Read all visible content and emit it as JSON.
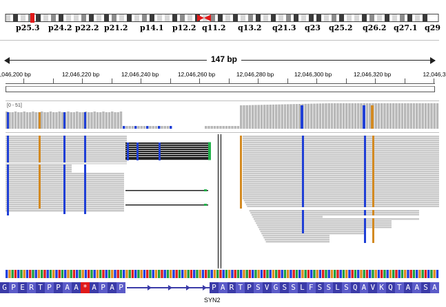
{
  "ideogram": {
    "band_labels": [
      "p25.3",
      "p24.2",
      "p22.2",
      "p21.2",
      "p14.1",
      "p12.2",
      "q11.2",
      "q13.2",
      "q21.3",
      "q23",
      "q25.2",
      "q26.2",
      "q27.1",
      "q29"
    ],
    "colors": {
      "dark": "#3a3a3a",
      "gray": "#8c8c8c",
      "light": "#d8d8d8",
      "centromere": "#e01a1a",
      "locator": "#e01a1a"
    }
  },
  "ruler": {
    "span_label": "147 bp",
    "tick_labels": [
      "2,046,200 bp",
      "12,046,220 bp",
      "12,046,240 bp",
      "12,046,260 bp",
      "12,046,280 bp",
      "12,046,300 bp",
      "12,046,320 bp",
      "12,046,3"
    ]
  },
  "coverage": {
    "range_label": "[0 - 51]",
    "colors": {
      "bar": "#b8b8b8",
      "base_A": "#1f3fd6",
      "base_G": "#d38a22",
      "base_C": "#1f3fd6"
    }
  },
  "alignments": {
    "colors": {
      "read": "#c8c8c8",
      "read_light": "#e3e3e3",
      "mismatch_C": "#1f3fd6",
      "mismatch_G": "#d38a22",
      "deletion": "#000000",
      "insertion_green": "#22b24a"
    }
  },
  "sequence": {
    "colors": {
      "blue": "#2040e0",
      "orange": "#e08a20",
      "green": "#20a040",
      "red": "#e02020"
    }
  },
  "gene": {
    "name": "SYN2",
    "amino_acids_left": [
      "G",
      "P",
      "E",
      "R",
      "T",
      "P",
      "P",
      "A",
      "A",
      "*",
      "A",
      "P",
      "A",
      "P"
    ],
    "amino_acids_right": [
      "P",
      "A",
      "R",
      "T",
      "P",
      "S",
      "V",
      "G",
      "S",
      "S",
      "L",
      "F",
      "S",
      "S",
      "L",
      "S",
      "Q",
      "A",
      "V",
      "K",
      "Q",
      "T",
      "A",
      "A",
      "S",
      "A"
    ],
    "colors": {
      "aa_dark": "#3b3ba8",
      "aa_light": "#5b5bc8",
      "stop": "#e01a1a",
      "line": "#3b3ba8"
    }
  }
}
